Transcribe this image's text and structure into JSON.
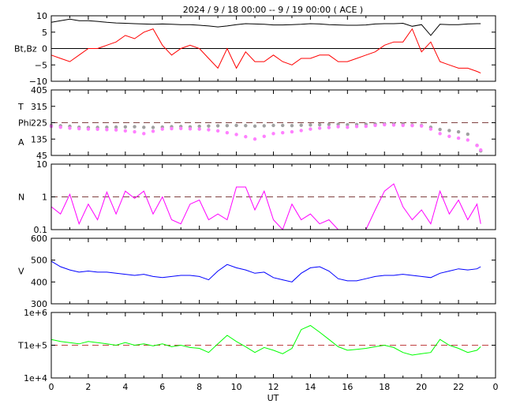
{
  "title": "2024 /  9 / 18   00:00 --  9 / 19   00:00 ( ACE )",
  "xlabel": "UT",
  "x_ticks": [
    "0",
    "2",
    "4",
    "6",
    "8",
    "10",
    "12",
    "14",
    "16",
    "18",
    "20",
    "22",
    "0"
  ],
  "colors": {
    "bt": "#000000",
    "bz": "#ff0000",
    "theta": "#a0a0a0",
    "phi": "#ff80ff",
    "density": "#ff00ff",
    "speed": "#0000ff",
    "temperature": "#00ff00",
    "reference": "#804040",
    "reference_t": "#c04040"
  },
  "chart_data": [
    {
      "type": "line",
      "panel": "magnetic-field",
      "ylabel": "Bt,Bz",
      "ylim": [
        -10,
        10
      ],
      "yticks": [
        "10",
        "5",
        "0",
        "−5",
        "−10"
      ],
      "reference_line": 0,
      "x": [
        0,
        0.5,
        1,
        1.5,
        2,
        2.5,
        3,
        3.5,
        4,
        4.5,
        5,
        5.5,
        6,
        6.5,
        7,
        7.5,
        8,
        8.5,
        9,
        9.5,
        10,
        10.5,
        11,
        11.5,
        12,
        12.5,
        13,
        13.5,
        14,
        14.5,
        15,
        15.5,
        16,
        16.5,
        17,
        17.5,
        18,
        18.5,
        19,
        19.5,
        20,
        20.5,
        21,
        21.5,
        22,
        22.5,
        23,
        23.2
      ],
      "series": [
        {
          "key": "bt",
          "values": [
            8,
            8.5,
            9,
            8.5,
            8.5,
            8.3,
            8,
            7.8,
            7.7,
            7.6,
            7.5,
            7.4,
            7.5,
            7.4,
            7.3,
            7.3,
            7.1,
            6.9,
            6.6,
            6.9,
            7.3,
            7.6,
            7.5,
            7.4,
            7.2,
            7.2,
            7.3,
            7.4,
            7.6,
            7.5,
            7.3,
            7.2,
            7.1,
            7.1,
            7.2,
            7.5,
            7.6,
            7.6,
            7.7,
            6.8,
            7.3,
            4,
            7.4,
            7.3,
            7.3,
            7.5,
            7.6,
            7.6
          ]
        },
        {
          "key": "bz",
          "values": [
            -2,
            -3,
            -4,
            -2,
            0,
            0,
            1,
            2,
            4,
            3,
            5,
            6,
            1,
            -2,
            0,
            1,
            0,
            -3,
            -6,
            0,
            -6,
            -1,
            -4,
            -4,
            -2,
            -4,
            -5,
            -3,
            -3,
            -2,
            -2,
            -4,
            -4,
            -3,
            -2,
            -1,
            1,
            2,
            2,
            6,
            -1,
            2,
            -4,
            -5,
            -6,
            -6,
            -7,
            -7.5
          ]
        }
      ]
    },
    {
      "type": "scatter",
      "panel": "field-angles",
      "ylabels": [
        "T",
        "Phi",
        "A"
      ],
      "ylim": [
        45,
        405
      ],
      "yticks": [
        "405",
        "315",
        "225",
        "135",
        "45"
      ],
      "reference_line": 225,
      "x": [
        0,
        0.5,
        1,
        1.5,
        2,
        2.5,
        3,
        3.5,
        4,
        4.5,
        5,
        5.5,
        6,
        6.5,
        7,
        7.5,
        8,
        8.5,
        9,
        9.5,
        10,
        10.5,
        11,
        11.5,
        12,
        12.5,
        13,
        13.5,
        14,
        14.5,
        15,
        15.5,
        16,
        16.5,
        17,
        17.5,
        18,
        18.5,
        19,
        19.5,
        20,
        20.5,
        21,
        21.5,
        22,
        22.5,
        23,
        23.2
      ],
      "series": [
        {
          "key": "theta",
          "values": [
            210,
            208,
            205,
            200,
            198,
            199,
            200,
            201,
            202,
            203,
            200,
            199,
            201,
            203,
            204,
            202,
            205,
            207,
            208,
            209,
            210,
            209,
            206,
            208,
            210,
            210,
            209,
            211,
            213,
            214,
            215,
            216,
            214,
            215,
            216,
            217,
            218,
            218,
            217,
            212,
            210,
            200,
            188,
            182,
            175,
            162,
            100,
            70
          ]
        },
        {
          "key": "phi",
          "values": [
            205,
            200,
            195,
            192,
            190,
            189,
            187,
            185,
            180,
            175,
            165,
            178,
            190,
            192,
            193,
            191,
            190,
            186,
            180,
            170,
            160,
            148,
            135,
            150,
            165,
            170,
            175,
            182,
            190,
            195,
            198,
            203,
            200,
            204,
            205,
            210,
            214,
            212,
            210,
            209,
            207,
            190,
            165,
            150,
            140,
            130,
            100,
            75
          ]
        }
      ]
    },
    {
      "type": "line",
      "panel": "density",
      "ylabel": "N",
      "yscale": "log",
      "ylim": [
        0.1,
        10
      ],
      "yticks": [
        "10",
        "1",
        "0.1"
      ],
      "reference_line": 1,
      "x": [
        0,
        0.5,
        1,
        1.5,
        2,
        2.5,
        3,
        3.5,
        4,
        4.5,
        5,
        5.5,
        6,
        6.5,
        7,
        7.5,
        8,
        8.5,
        9,
        9.5,
        10,
        10.5,
        11,
        11.5,
        12,
        12.5,
        13,
        13.5,
        14,
        14.5,
        15,
        15.5,
        16,
        16.5,
        17,
        17.5,
        18,
        18.5,
        19,
        19.5,
        20,
        20.5,
        21,
        21.5,
        22,
        22.5,
        23,
        23.2
      ],
      "series": [
        {
          "key": "density",
          "values": [
            0.5,
            0.3,
            1.2,
            0.15,
            0.6,
            0.2,
            1.4,
            0.3,
            1.5,
            0.9,
            1.5,
            0.3,
            1,
            0.2,
            0.15,
            0.6,
            0.8,
            0.2,
            0.3,
            0.2,
            2,
            2,
            0.4,
            1.5,
            0.2,
            0.1,
            0.6,
            0.2,
            0.3,
            0.15,
            0.2,
            0.1,
            0.1,
            0.1,
            0.1,
            0.4,
            1.5,
            2.5,
            0.5,
            0.2,
            0.4,
            0.15,
            1.5,
            0.3,
            0.8,
            0.2,
            0.6,
            0.15
          ]
        }
      ]
    },
    {
      "type": "line",
      "panel": "speed",
      "ylabel": "V",
      "ylim": [
        300,
        600
      ],
      "yticks": [
        "600",
        "500",
        "400",
        "300"
      ],
      "x": [
        0,
        0.5,
        1,
        1.5,
        2,
        2.5,
        3,
        3.5,
        4,
        4.5,
        5,
        5.5,
        6,
        6.5,
        7,
        7.5,
        8,
        8.5,
        9,
        9.5,
        10,
        10.5,
        11,
        11.5,
        12,
        12.5,
        13,
        13.5,
        14,
        14.5,
        15,
        15.5,
        16,
        16.5,
        17,
        17.5,
        18,
        18.5,
        19,
        19.5,
        20,
        20.5,
        21,
        21.5,
        22,
        22.5,
        23,
        23.2
      ],
      "series": [
        {
          "key": "speed",
          "values": [
            495,
            470,
            455,
            445,
            450,
            445,
            445,
            440,
            435,
            430,
            435,
            425,
            420,
            425,
            430,
            430,
            425,
            410,
            450,
            480,
            465,
            455,
            440,
            445,
            420,
            410,
            400,
            440,
            465,
            470,
            450,
            415,
            405,
            405,
            415,
            425,
            430,
            430,
            435,
            430,
            425,
            420,
            440,
            450,
            460,
            455,
            460,
            470
          ]
        }
      ]
    },
    {
      "type": "line",
      "panel": "temperature",
      "ylabel": "T",
      "yscale": "log",
      "ylim": [
        10000,
        1000000
      ],
      "yticks": [
        "1e+6",
        "1e+5",
        "1e+4"
      ],
      "reference_line": 100000,
      "x": [
        0,
        0.5,
        1,
        1.5,
        2,
        2.5,
        3,
        3.5,
        4,
        4.5,
        5,
        5.5,
        6,
        6.5,
        7,
        7.5,
        8,
        8.5,
        9,
        9.5,
        10,
        10.5,
        11,
        11.5,
        12,
        12.5,
        13,
        13.5,
        14,
        14.5,
        15,
        15.5,
        16,
        16.5,
        17,
        17.5,
        18,
        18.5,
        19,
        19.5,
        20,
        20.5,
        21,
        21.5,
        22,
        22.5,
        23,
        23.2
      ],
      "series": [
        {
          "key": "temperature",
          "values": [
            150000,
            130000,
            120000,
            110000,
            130000,
            120000,
            110000,
            100000,
            120000,
            100000,
            110000,
            95000,
            110000,
            90000,
            100000,
            85000,
            80000,
            60000,
            110000,
            200000,
            130000,
            90000,
            60000,
            85000,
            70000,
            55000,
            80000,
            300000,
            400000,
            250000,
            150000,
            90000,
            70000,
            75000,
            80000,
            90000,
            100000,
            85000,
            60000,
            50000,
            55000,
            60000,
            150000,
            100000,
            80000,
            60000,
            70000,
            90000
          ]
        }
      ]
    }
  ]
}
